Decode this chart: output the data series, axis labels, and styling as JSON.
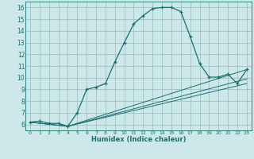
{
  "xlabel": "Humidex (Indice chaleur)",
  "bg_color": "#cce8e8",
  "grid_color": "#99bbbb",
  "line_color": "#1a7070",
  "xlim": [
    -0.5,
    23.5
  ],
  "ylim": [
    5.5,
    16.5
  ],
  "xticks": [
    0,
    1,
    2,
    3,
    4,
    5,
    6,
    7,
    8,
    9,
    10,
    11,
    12,
    13,
    14,
    15,
    16,
    17,
    18,
    19,
    20,
    21,
    22,
    23
  ],
  "yticks": [
    6,
    7,
    8,
    9,
    10,
    11,
    12,
    13,
    14,
    15,
    16
  ],
  "line1_x": [
    0,
    1,
    2,
    3,
    4,
    5,
    6,
    7,
    8,
    9,
    10,
    11,
    12,
    13,
    14,
    15,
    16,
    17,
    18,
    19,
    20,
    21,
    22,
    23
  ],
  "line1_y": [
    6.2,
    6.3,
    6.1,
    6.1,
    5.85,
    7.0,
    9.0,
    9.2,
    9.5,
    11.35,
    13.0,
    14.6,
    15.3,
    15.9,
    16.0,
    16.0,
    15.65,
    13.5,
    11.2,
    10.05,
    10.05,
    10.3,
    9.5,
    10.7
  ],
  "line2_x": [
    0,
    4,
    23
  ],
  "line2_y": [
    6.2,
    5.85,
    10.7
  ],
  "line3_x": [
    0,
    4,
    23
  ],
  "line3_y": [
    6.2,
    5.85,
    9.9
  ],
  "line4_x": [
    0,
    4,
    23
  ],
  "line4_y": [
    6.2,
    5.85,
    9.5
  ]
}
